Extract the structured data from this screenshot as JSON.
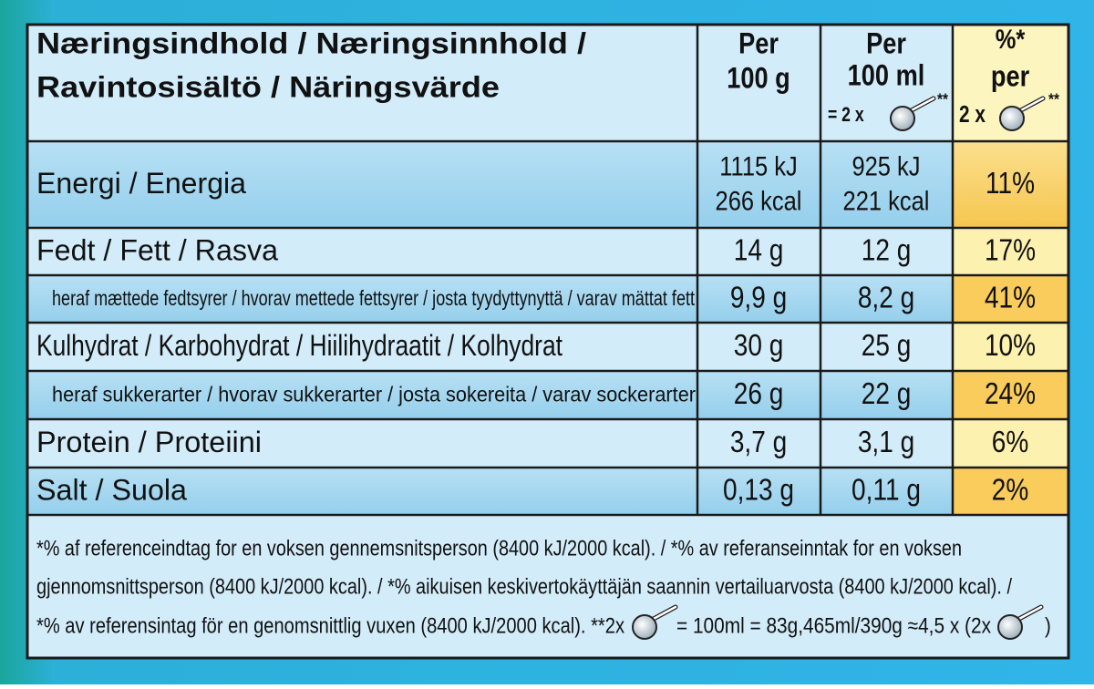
{
  "header": {
    "label": [
      "Næringsindhold / Næringsinnhold /",
      "Ravintosisältö / Näringsvärde"
    ],
    "per_100g": [
      "Per",
      "100 g"
    ],
    "per_100ml": [
      "Per",
      "100 ml",
      "= 2 x",
      "**"
    ],
    "percent": [
      "%*",
      "per",
      "2 x",
      "**"
    ]
  },
  "rows": [
    {
      "label": "Energi / Energia",
      "per_100g": [
        "1115 kJ",
        "266 kcal"
      ],
      "per_100ml": [
        "925 kJ",
        "221 kcal"
      ],
      "percent": "11%"
    },
    {
      "label": "Fedt / Fett / Rasva",
      "per_100g": [
        "14 g"
      ],
      "per_100ml": [
        "12 g"
      ],
      "percent": "17%"
    },
    {
      "label": "heraf mættede fedtsyrer / hvorav mettede fettsyrer / josta tyydyttynyttä / varav mättat fett",
      "per_100g": [
        "9,9 g"
      ],
      "per_100ml": [
        "8,2 g"
      ],
      "percent": "41%"
    },
    {
      "label": "Kulhydrat / Karbohydrat / Hiilihydraatit / Kolhydrat",
      "per_100g": [
        "30 g"
      ],
      "per_100ml": [
        "25 g"
      ],
      "percent": "10%"
    },
    {
      "label": "heraf sukkerarter / hvorav sukkerarter / josta sokereita / varav sockerarter",
      "per_100g": [
        "26 g"
      ],
      "per_100ml": [
        "22 g"
      ],
      "percent": "24%"
    },
    {
      "label": "Protein / Proteiini",
      "per_100g": [
        "3,7 g"
      ],
      "per_100ml": [
        "3,1 g"
      ],
      "percent": "6%"
    },
    {
      "label": "Salt / Suola",
      "per_100g": [
        "0,13 g"
      ],
      "per_100ml": [
        "0,11 g"
      ],
      "percent": "2%"
    }
  ],
  "footnote": {
    "lines": [
      "*% af referenceindtag for en voksen gennemsnitsperson (8400 kJ/2000 kcal). / *% av referanseinntak for en voksen",
      "gjennomsnittsperson (8400 kJ/2000 kcal). / *% aikuisen keskivertokäyttäjän saannin vertailuarvosta (8400 kJ/2000 kcal). /"
    ],
    "last_line": [
      "*% av referensintag för en genomsnittlig vuxen (8400 kJ/2000 kcal).  **2x",
      "= 100ml = 83g,465ml/390g ≈4,5 x (2x",
      ")"
    ]
  }
}
